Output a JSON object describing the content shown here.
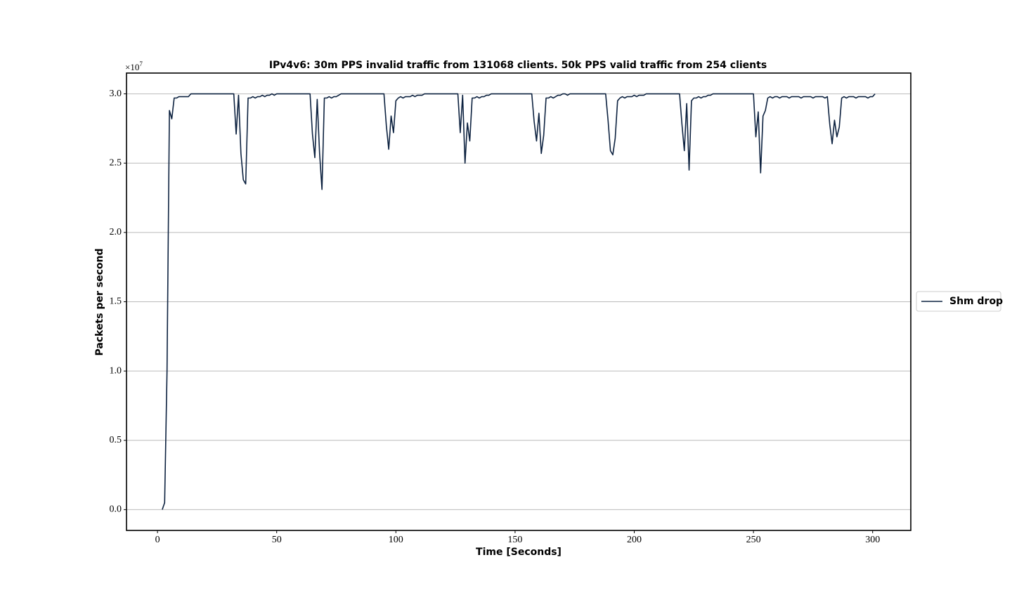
{
  "chart_data": {
    "type": "line",
    "title": "IPv4v6:  30m PPS invalid traffic from 131068 clients. 50k PPS valid traffic from 254 clients",
    "x_label": "Time [Seconds]",
    "y_label": "Packets per second",
    "y_multiplier": {
      "base": "×10",
      "exponent": "7"
    },
    "xlim": [
      -13,
      316
    ],
    "xticks": [
      0,
      50,
      100,
      150,
      200,
      250,
      300
    ],
    "ylim": [
      -0.15,
      3.15
    ],
    "yticks": [
      {
        "value": 0,
        "label": "0.0"
      },
      {
        "value": 0.5,
        "label": "0.5"
      },
      {
        "value": 1,
        "label": "1.0"
      },
      {
        "value": 1.5,
        "label": "1.5"
      },
      {
        "value": 2,
        "label": "2.0"
      },
      {
        "value": 2.5,
        "label": "2.5"
      },
      {
        "value": 3,
        "label": "3.0"
      }
    ],
    "grid": "y",
    "legend": "right",
    "x": [
      2,
      3,
      4,
      5,
      6,
      7,
      8,
      9,
      10,
      11,
      12,
      13,
      14,
      15,
      16,
      17,
      18,
      19,
      20,
      21,
      22,
      23,
      24,
      25,
      26,
      27,
      28,
      29,
      30,
      31,
      32,
      33,
      34,
      35,
      36,
      37,
      38,
      39,
      40,
      41,
      42,
      43,
      44,
      45,
      46,
      47,
      48,
      49,
      50,
      51,
      52,
      53,
      54,
      55,
      56,
      57,
      58,
      59,
      60,
      61,
      62,
      63,
      64,
      65,
      66,
      67,
      68,
      69,
      70,
      71,
      72,
      73,
      74,
      75,
      76,
      77,
      78,
      79,
      80,
      81,
      82,
      83,
      84,
      85,
      86,
      87,
      88,
      89,
      90,
      91,
      92,
      93,
      94,
      95,
      96,
      97,
      98,
      99,
      100,
      101,
      102,
      103,
      104,
      105,
      106,
      107,
      108,
      109,
      110,
      111,
      112,
      113,
      114,
      115,
      116,
      117,
      118,
      119,
      120,
      121,
      122,
      123,
      124,
      125,
      126,
      127,
      128,
      129,
      130,
      131,
      132,
      133,
      134,
      135,
      136,
      137,
      138,
      139,
      140,
      141,
      142,
      143,
      144,
      145,
      146,
      147,
      148,
      149,
      150,
      151,
      152,
      153,
      154,
      155,
      156,
      157,
      158,
      159,
      160,
      161,
      162,
      163,
      164,
      165,
      166,
      167,
      168,
      169,
      170,
      171,
      172,
      173,
      174,
      175,
      176,
      177,
      178,
      179,
      180,
      181,
      182,
      183,
      184,
      185,
      186,
      187,
      188,
      189,
      190,
      191,
      192,
      193,
      194,
      195,
      196,
      197,
      198,
      199,
      200,
      201,
      202,
      203,
      204,
      205,
      206,
      207,
      208,
      209,
      210,
      211,
      212,
      213,
      214,
      215,
      216,
      217,
      218,
      219,
      220,
      221,
      222,
      223,
      224,
      225,
      226,
      227,
      228,
      229,
      230,
      231,
      232,
      233,
      234,
      235,
      236,
      237,
      238,
      239,
      240,
      241,
      242,
      243,
      244,
      245,
      246,
      247,
      248,
      249,
      250,
      251,
      252,
      253,
      254,
      255,
      256,
      257,
      258,
      259,
      260,
      261,
      262,
      263,
      264,
      265,
      266,
      267,
      268,
      269,
      270,
      271,
      272,
      273,
      274,
      275,
      276,
      277,
      278,
      279,
      280,
      281,
      282,
      283,
      284,
      285,
      286,
      287,
      288,
      289,
      290,
      291,
      292,
      293,
      294,
      295,
      296,
      297,
      298,
      299,
      300,
      301
    ],
    "series": [
      {
        "name": "Shm drop",
        "color": "#0d2240",
        "values": [
          0,
          0.05,
          1.0,
          2.88,
          2.82,
          2.97,
          2.97,
          2.98,
          2.98,
          2.98,
          2.98,
          2.98,
          3.0,
          3.0,
          3.0,
          3.0,
          3.0,
          3.0,
          3.0,
          3.0,
          3.0,
          3.0,
          3.0,
          3.0,
          3.0,
          3.0,
          3.0,
          3.0,
          3.0,
          3.0,
          3.0,
          2.71,
          2.99,
          2.57,
          2.38,
          2.35,
          2.97,
          2.97,
          2.98,
          2.97,
          2.98,
          2.98,
          2.99,
          2.98,
          2.99,
          2.99,
          3.0,
          2.99,
          3.0,
          3.0,
          3.0,
          3.0,
          3.0,
          3.0,
          3.0,
          3.0,
          3.0,
          3.0,
          3.0,
          3.0,
          3.0,
          3.0,
          3.0,
          2.71,
          2.54,
          2.96,
          2.57,
          2.31,
          2.97,
          2.97,
          2.98,
          2.97,
          2.98,
          2.98,
          2.99,
          3.0,
          3.0,
          3.0,
          3.0,
          3.0,
          3.0,
          3.0,
          3.0,
          3.0,
          3.0,
          3.0,
          3.0,
          3.0,
          3.0,
          3.0,
          3.0,
          3.0,
          3.0,
          3.0,
          2.77,
          2.6,
          2.84,
          2.72,
          2.95,
          2.97,
          2.98,
          2.97,
          2.98,
          2.98,
          2.98,
          2.99,
          2.98,
          2.99,
          2.99,
          2.99,
          3.0,
          3.0,
          3.0,
          3.0,
          3.0,
          3.0,
          3.0,
          3.0,
          3.0,
          3.0,
          3.0,
          3.0,
          3.0,
          3.0,
          3.0,
          2.72,
          2.99,
          2.5,
          2.79,
          2.66,
          2.97,
          2.97,
          2.98,
          2.97,
          2.98,
          2.98,
          2.99,
          2.99,
          3.0,
          3.0,
          3.0,
          3.0,
          3.0,
          3.0,
          3.0,
          3.0,
          3.0,
          3.0,
          3.0,
          3.0,
          3.0,
          3.0,
          3.0,
          3.0,
          3.0,
          3.0,
          2.8,
          2.66,
          2.86,
          2.57,
          2.7,
          2.97,
          2.97,
          2.98,
          2.97,
          2.98,
          2.99,
          2.99,
          3.0,
          3.0,
          2.99,
          3.0,
          3.0,
          3.0,
          3.0,
          3.0,
          3.0,
          3.0,
          3.0,
          3.0,
          3.0,
          3.0,
          3.0,
          3.0,
          3.0,
          3.0,
          3.0,
          2.81,
          2.59,
          2.56,
          2.68,
          2.95,
          2.97,
          2.98,
          2.97,
          2.98,
          2.98,
          2.98,
          2.99,
          2.98,
          2.99,
          2.99,
          2.99,
          3.0,
          3.0,
          3.0,
          3.0,
          3.0,
          3.0,
          3.0,
          3.0,
          3.0,
          3.0,
          3.0,
          3.0,
          3.0,
          3.0,
          3.0,
          2.78,
          2.59,
          2.93,
          2.45,
          2.95,
          2.97,
          2.97,
          2.98,
          2.97,
          2.98,
          2.98,
          2.99,
          2.99,
          3.0,
          3.0,
          3.0,
          3.0,
          3.0,
          3.0,
          3.0,
          3.0,
          3.0,
          3.0,
          3.0,
          3.0,
          3.0,
          3.0,
          3.0,
          3.0,
          3.0,
          3.0,
          2.69,
          2.87,
          2.43,
          2.84,
          2.88,
          2.97,
          2.98,
          2.97,
          2.98,
          2.98,
          2.97,
          2.98,
          2.98,
          2.98,
          2.97,
          2.98,
          2.98,
          2.98,
          2.98,
          2.97,
          2.98,
          2.98,
          2.98,
          2.98,
          2.97,
          2.98,
          2.98,
          2.98,
          2.98,
          2.97,
          2.98,
          2.78,
          2.64,
          2.81,
          2.69,
          2.76,
          2.97,
          2.98,
          2.97,
          2.98,
          2.98,
          2.98,
          2.97,
          2.98,
          2.98,
          2.98,
          2.98,
          2.97,
          2.98,
          2.98,
          3.0
        ]
      }
    ]
  }
}
